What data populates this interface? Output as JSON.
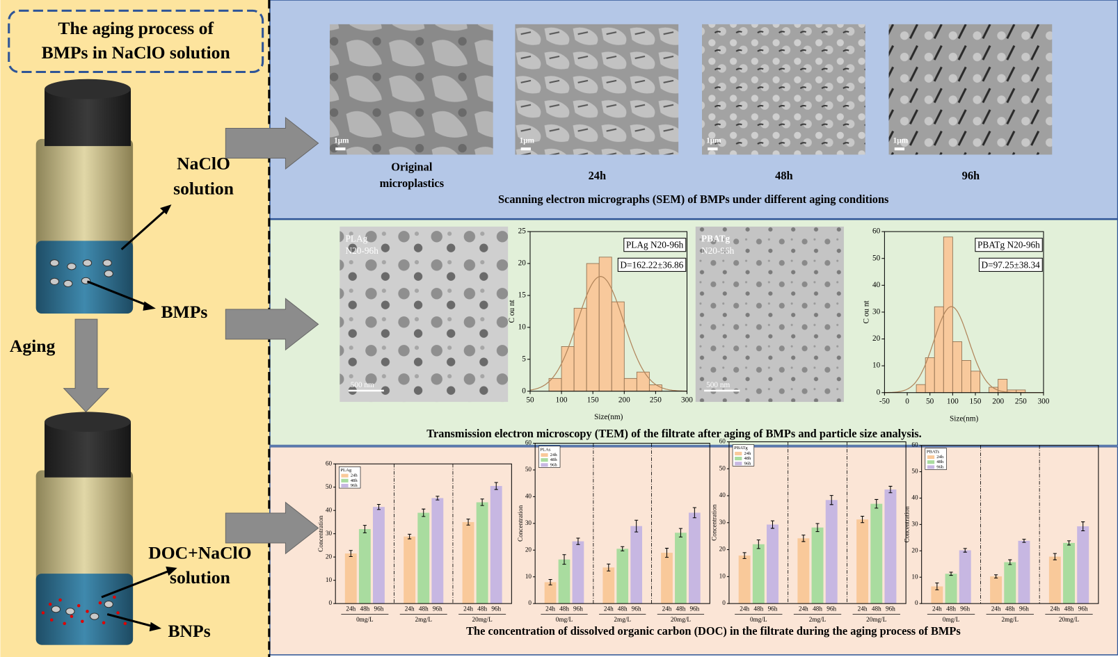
{
  "left": {
    "title": [
      "The aging process of",
      "BMPs in NaClO solution"
    ],
    "naclo": [
      "NaClO",
      "solution"
    ],
    "bmps": "BMPs",
    "aging": "Aging",
    "doc": [
      "DOC+NaClO",
      "solution"
    ],
    "bnps": "BNPs"
  },
  "sem": {
    "images": [
      {
        "caption": [
          "Original",
          "microplastics"
        ],
        "scale": "1μm"
      },
      {
        "caption": [
          "24h"
        ],
        "scale": "1μm"
      },
      {
        "caption": [
          "48h"
        ],
        "scale": "1μm"
      },
      {
        "caption": [
          "96h"
        ],
        "scale": "1μm"
      }
    ],
    "title": "Scanning electron micrographs (SEM) of BMPs under different aging conditions"
  },
  "tem": {
    "images": [
      {
        "label": [
          "PLAg",
          "N20-96h"
        ],
        "scale": "500  nm"
      },
      {
        "label": [
          "PBATg",
          "N20-96h"
        ],
        "scale": "500  nm"
      }
    ],
    "title": "Transmission electron microscopy (TEM) of the filtrate after aging of BMPs and particle size analysis."
  },
  "doc_title": "The concentration of dissolved organic carbon (DOC) in the filtrate during the aging process of BMPs",
  "chart_data": [
    {
      "type": "histogram",
      "legend_label": "PLAg N20-96h",
      "annotation": "D=162.22±36.86",
      "fit_mean": 162.22,
      "fit_sd": 36.86,
      "bins": [
        80,
        100,
        120,
        140,
        160,
        180,
        200,
        220,
        240,
        260,
        280
      ],
      "counts": [
        2,
        7,
        13,
        20,
        21,
        14,
        2,
        3,
        1,
        0
      ],
      "color": "#f8c99c",
      "curve_color": "#b0845a",
      "xlim": [
        50,
        300
      ],
      "xticks": [
        50,
        100,
        150,
        200,
        250,
        300
      ],
      "ylim": [
        0,
        25
      ],
      "yticks": [
        0,
        5,
        10,
        15,
        20,
        25
      ],
      "xlabel": "Size(nm)",
      "ylabel": "C ou nt"
    },
    {
      "type": "histogram",
      "legend_label": "PBATg N20-96h",
      "annotation": "D=97.25±38.34",
      "fit_mean": 97.25,
      "fit_sd": 38.34,
      "bins": [
        20,
        40,
        60,
        80,
        100,
        120,
        140,
        160,
        180,
        200,
        220,
        240,
        260
      ],
      "counts": [
        3,
        13,
        32,
        58,
        19,
        12,
        8,
        0,
        2,
        5,
        1,
        1
      ],
      "color": "#f8c99c",
      "curve_color": "#b0845a",
      "xlim": [
        -50,
        300
      ],
      "xticks": [
        -50,
        0,
        50,
        100,
        150,
        200,
        250,
        300
      ],
      "ylim": [
        0,
        60
      ],
      "yticks": [
        0,
        10,
        20,
        30,
        40,
        50,
        60
      ],
      "xlabel": "Size(nm)",
      "ylabel": "C ou nt"
    },
    {
      "type": "bar",
      "legend_title": "PLAg",
      "ylabel": "Concentration",
      "categories": [
        "0mg/L",
        "2mg/L",
        "20mg/L"
      ],
      "series": [
        {
          "name": "24h",
          "color": "#f9c99a",
          "values": [
            21.5,
            28.8,
            35
          ],
          "errors": [
            1.3,
            1.0,
            1.3
          ]
        },
        {
          "name": "48h",
          "color": "#a9dc9f",
          "values": [
            32,
            39,
            43.5
          ],
          "errors": [
            1.6,
            1.6,
            1.4
          ]
        },
        {
          "name": "96h",
          "color": "#c7b7e2",
          "values": [
            41.5,
            45.3,
            50.5
          ],
          "errors": [
            1.1,
            0.8,
            1.5
          ]
        }
      ],
      "ylim": [
        0,
        60
      ],
      "yticks": [
        0,
        10,
        20,
        30,
        40,
        50,
        60
      ]
    },
    {
      "type": "bar",
      "legend_title": "PLAs",
      "ylabel": "Concentration",
      "categories": [
        "0mg/L",
        "2mg/L",
        "20mg/L"
      ],
      "series": [
        {
          "name": "24h",
          "color": "#f9c99a",
          "values": [
            8,
            13.5,
            19
          ],
          "errors": [
            1.0,
            1.3,
            1.7
          ]
        },
        {
          "name": "48h",
          "color": "#a9dc9f",
          "values": [
            16.5,
            20.5,
            26.5
          ],
          "errors": [
            1.8,
            0.8,
            1.6
          ]
        },
        {
          "name": "96h",
          "color": "#c7b7e2",
          "values": [
            23.3,
            29,
            34
          ],
          "errors": [
            1.2,
            2.2,
            1.9
          ]
        }
      ],
      "ylim": [
        0,
        60
      ],
      "yticks": [
        0,
        10,
        20,
        30,
        40,
        50,
        60
      ]
    },
    {
      "type": "bar",
      "legend_title": "PBATg",
      "ylabel": "Concentration",
      "categories": [
        "0mg/L",
        "2mg/L",
        "20mg/L"
      ],
      "series": [
        {
          "name": "24h",
          "color": "#f9c99a",
          "values": [
            17.8,
            24.2,
            31.2
          ],
          "errors": [
            1.1,
            1.2,
            1.2
          ]
        },
        {
          "name": "48h",
          "color": "#a9dc9f",
          "values": [
            22,
            28.2,
            37
          ],
          "errors": [
            1.6,
            1.5,
            1.6
          ]
        },
        {
          "name": "96h",
          "color": "#c7b7e2",
          "values": [
            29.3,
            38.4,
            42.3
          ],
          "errors": [
            1.4,
            1.7,
            1.2
          ]
        }
      ],
      "ylim": [
        0,
        60
      ],
      "yticks": [
        0,
        10,
        20,
        30,
        40,
        50,
        60
      ]
    },
    {
      "type": "bar",
      "legend_title": "PBATs",
      "ylabel": "Concentration",
      "categories": [
        "0mg/L",
        "2mg/L",
        "20mg/L"
      ],
      "series": [
        {
          "name": "24h",
          "color": "#f9c99a",
          "values": [
            6.5,
            10.3,
            17.8
          ],
          "errors": [
            1.3,
            0.6,
            1.2
          ]
        },
        {
          "name": "48h",
          "color": "#a9dc9f",
          "values": [
            11.3,
            15.7,
            23
          ],
          "errors": [
            0.6,
            0.9,
            0.8
          ]
        },
        {
          "name": "96h",
          "color": "#c7b7e2",
          "values": [
            20.2,
            23.8,
            29.3
          ],
          "errors": [
            0.7,
            0.6,
            1.7
          ]
        }
      ],
      "ylim": [
        0,
        60
      ],
      "yticks": [
        0,
        10,
        20,
        30,
        40,
        50,
        60
      ]
    }
  ]
}
